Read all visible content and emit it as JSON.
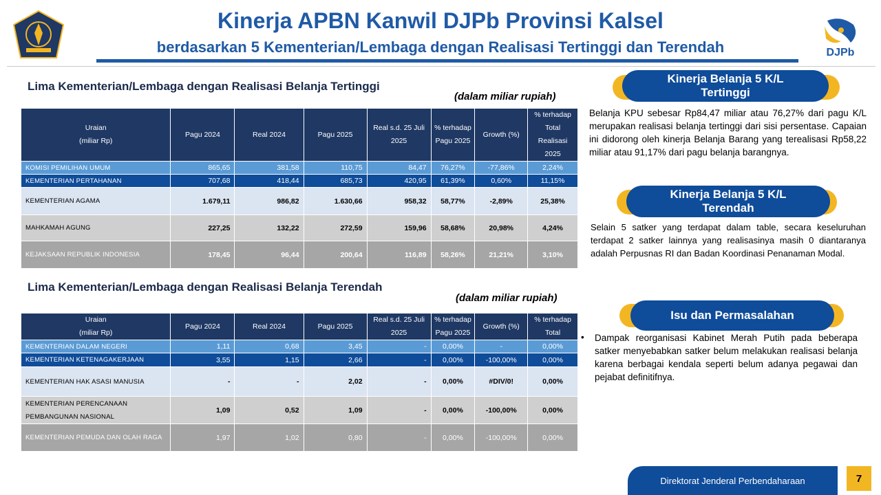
{
  "header": {
    "title": "Kinerja APBN Kanwil DJPb Provinsi Kalsel",
    "subtitle": "berdasarkan 5 Kementerian/Lembaga dengan Realisasi Tertinggi dan Terendah",
    "logo_right_text": "DJPb"
  },
  "columns": {
    "uraian_1": "Uraian",
    "uraian_2": "(miliar Rp)",
    "pagu2024": "Pagu 2024",
    "real2024": "Real 2024",
    "pagu2025": "Pagu 2025",
    "real2025_1": "Real s.d. 25 Juli",
    "real2025_2": "2025",
    "pct_pagu_1": "% terhadap",
    "pct_pagu_2": "Pagu 2025",
    "growth": "Growth (%)",
    "pct_total_1": "% terhadap",
    "pct_total_2": "Total",
    "pct_total_3": "Realisasi 2025"
  },
  "top": {
    "title": "Lima Kementerian/Lembaga dengan Realisasi Belanja Tertinggi",
    "unit": "(dalam miliar rupiah)",
    "rows": [
      {
        "name": "KOMISI PEMILIHAN UMUM",
        "pagu2024": "865,65",
        "real2024": "381,58",
        "pagu2025": "110,75",
        "real2025": "84,47",
        "pct_pagu": "76,27%",
        "growth": "-77,86%",
        "pct_total": "2,24%"
      },
      {
        "name": "KEMENTERIAN PERTAHANAN",
        "pagu2024": "707,68",
        "real2024": "418,44",
        "pagu2025": "685,73",
        "real2025": "420,95",
        "pct_pagu": "61,39%",
        "growth": "0,60%",
        "pct_total": "11,15%"
      },
      {
        "name": "KEMENTERIAN AGAMA",
        "pagu2024": "1.679,11",
        "real2024": "986,82",
        "pagu2025": "1.630,66",
        "real2025": "958,32",
        "pct_pagu": "58,77%",
        "growth": "-2,89%",
        "pct_total": "25,38%"
      },
      {
        "name": "MAHKAMAH AGUNG",
        "pagu2024": "227,25",
        "real2024": "132,22",
        "pagu2025": "272,59",
        "real2025": "159,96",
        "pct_pagu": "58,68%",
        "growth": "20,98%",
        "pct_total": "4,24%"
      },
      {
        "name": "KEJAKSAAN REPUBLIK INDONESIA",
        "pagu2024": "178,45",
        "real2024": "96,44",
        "pagu2025": "200,64",
        "real2025": "116,89",
        "pct_pagu": "58,26%",
        "growth": "21,21%",
        "pct_total": "3,10%"
      }
    ]
  },
  "bottom": {
    "title": "Lima Kementerian/Lembaga dengan Realisasi Belanja Terendah",
    "unit": "(dalam miliar rupiah)",
    "pct_total_1": "% terhadap",
    "pct_total_2": "Total",
    "rows": [
      {
        "name": "KEMENTERIAN DALAM  NEGERI",
        "pagu2024": "1,11",
        "real2024": "0,68",
        "pagu2025": "3,45",
        "real2025": "-",
        "pct_pagu": "0,00%",
        "growth": "-",
        "pct_total": "0,00%"
      },
      {
        "name": "KEMENTERIAN KETENAGAKERJAAN",
        "pagu2024": "3,55",
        "real2024": "1,15",
        "pagu2025": "2,66",
        "real2025": "-",
        "pct_pagu": "0,00%",
        "growth": "-100,00%",
        "pct_total": "0,00%"
      },
      {
        "name": "KEMENTERIAN HAK ASASI MANUSIA",
        "pagu2024": "-",
        "real2024": "-",
        "pagu2025": "2,02",
        "real2025": "-",
        "pct_pagu": "0,00%",
        "growth": "#DIV/0!",
        "pct_total": "0,00%"
      },
      {
        "name_1": "KEMENTERIAN PERENCANAAN",
        "name_2": "PEMBANGUNAN NASIONAL",
        "pagu2024": "1,09",
        "real2024": "0,52",
        "pagu2025": "1,09",
        "real2025": "-",
        "pct_pagu": "0,00%",
        "growth": "-100,00%",
        "pct_total": "0,00%"
      },
      {
        "name": "KEMENTERIAN PEMUDA DAN OLAH RAGA",
        "pagu2024": "1,97",
        "real2024": "1,02",
        "pagu2025": "0,80",
        "real2025": "-",
        "pct_pagu": "0,00%",
        "growth": "-100,00%",
        "pct_total": "0,00%"
      }
    ]
  },
  "panel": {
    "box1_title_1": "Kinerja Belanja 5 K/L",
    "box1_title_2": "Tertinggi",
    "box1_text": "Belanja KPU sebesar Rp84,47 miliar atau 76,27% dari pagu K/L merupakan realisasi belanja tertinggi dari sisi persentase. Capaian ini didorong oleh kinerja Belanja Barang yang terealisasi Rp58,22 miliar atau 91,17% dari pagu belanja barangnya.",
    "box2_title_1": "Kinerja Belanja 5 K/L",
    "box2_title_2": "Terendah",
    "box2_text": "Selain 5 satker yang terdapat dalam table, secara keseluruhan terdapat 2 satker lainnya yang realisasinya masih 0 diantaranya adalah Perpusnas RI dan Badan Koordinasi Penanaman Modal.",
    "box3_title": "Isu dan Permasalahan",
    "box3_bullet": "Dampak reorganisasi Kabinet Merah Putih pada beberapa satker menyebabkan satker belum melakukan realisasi belanja karena berbagai kendala seperti belum adanya pegawai dan pejabat definitifnya."
  },
  "footer": {
    "org": "Direktorat Jenderal Perbendaharaan",
    "page": "7"
  },
  "colors": {
    "navy": "#1f3864",
    "blue": "#0f4c9a",
    "light_blue": "#5b9bd5",
    "accent": "#f3b623",
    "title_blue": "#1f5aa6"
  }
}
